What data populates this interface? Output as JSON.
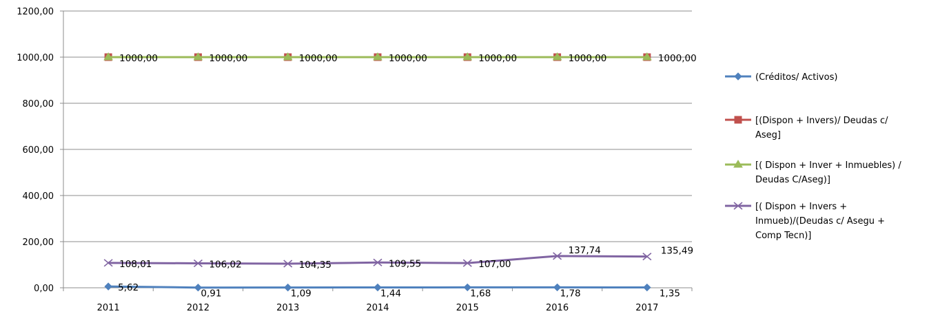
{
  "chart_data": {
    "type": "line",
    "title": "",
    "xlabel": "",
    "ylabel": "",
    "categories": [
      "2011",
      "2012",
      "2013",
      "2014",
      "2015",
      "2016",
      "2017"
    ],
    "ylim": [
      0,
      1200
    ],
    "yticks": [
      "0,00",
      "200,00",
      "400,00",
      "600,00",
      "800,00",
      "1000,00",
      "1200,00"
    ],
    "grid": true,
    "legend_position": "right",
    "series": [
      {
        "name_lines": [
          "(Créditos/ Activos)"
        ],
        "values": [
          5.62,
          0.91,
          1.09,
          1.44,
          1.68,
          1.78,
          1.35
        ],
        "labels": [
          "5,62",
          "0,91",
          "1,09",
          "1,44",
          "1,68",
          "1,78",
          "1,35"
        ],
        "color": "#4F81BD",
        "marker": "diamond"
      },
      {
        "name_lines": [
          "[(Dispon + Invers)/ Deudas c/",
          "Aseg]"
        ],
        "values": [
          1000,
          1000,
          1000,
          1000,
          1000,
          1000,
          1000
        ],
        "labels": [
          "1000,00",
          "1000,00",
          "1000,00",
          "1000,00",
          "1000,00",
          "1000,00",
          "1000,00"
        ],
        "color": "#C0504D",
        "marker": "square"
      },
      {
        "name_lines": [
          "[( Dispon + Inver + Inmuebles) /",
          "Deudas C/Aseg)]"
        ],
        "values": [
          1000,
          1000,
          1000,
          1000,
          1000,
          1000,
          1000
        ],
        "labels": [],
        "color": "#9BBB59",
        "marker": "triangle"
      },
      {
        "name_lines": [
          "[( Dispon + Invers +",
          "Inmueb)/(Deudas c/ Asegu +",
          "Comp Tecn)]"
        ],
        "values": [
          108.01,
          106.02,
          104.35,
          109.55,
          107.0,
          137.74,
          135.49
        ],
        "labels": [
          "108,01",
          "106,02",
          "104,35",
          "109,55",
          "107,00",
          "137,74",
          "135,49"
        ],
        "color": "#8064A2",
        "marker": "x"
      }
    ]
  }
}
